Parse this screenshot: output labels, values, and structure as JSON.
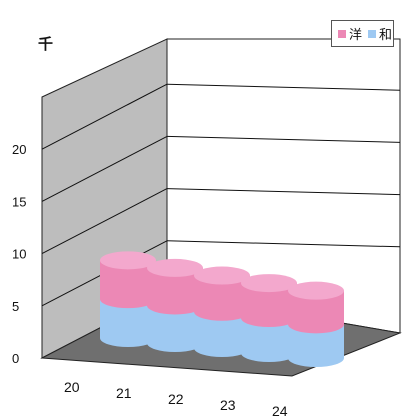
{
  "chart_data": {
    "type": "bar",
    "subtype": "3d-stacked-cylinder",
    "title": "",
    "unit_label": "千",
    "categories": [
      "20",
      "21",
      "22",
      "23",
      "24"
    ],
    "series": [
      {
        "name": "和",
        "color": "#9ec9f2",
        "values": [
          6.0,
          5.8,
          5.6,
          5.4,
          5.2
        ]
      },
      {
        "name": "洋",
        "color": "#ec88b5",
        "values": [
          6.0,
          5.8,
          5.6,
          5.4,
          5.2
        ]
      }
    ],
    "yticks": [
      "0",
      "5",
      "10",
      "15",
      "20"
    ],
    "ylim": [
      0,
      25
    ],
    "grid": true,
    "legend_position": "top-right"
  }
}
